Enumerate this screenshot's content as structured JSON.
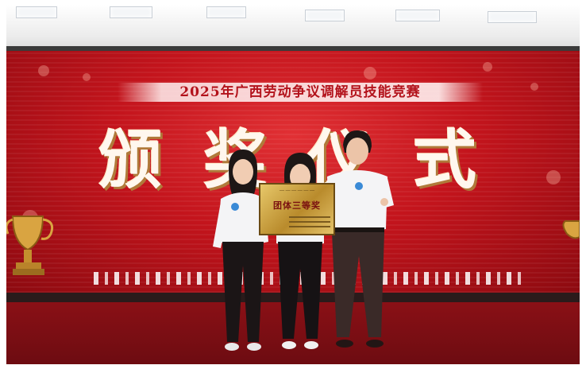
{
  "event": {
    "banner": "2025年广西劳动争议调解员技能竞赛",
    "title": "颁奖仪式"
  },
  "plaque": {
    "award": "团体三等奖"
  },
  "colors": {
    "screen_red": "#c3141c",
    "stage_red": "#7a0f14",
    "banner_text": "#b3121b",
    "title_fill": "#fff7ee",
    "plaque_gold": "#d6b04f"
  }
}
